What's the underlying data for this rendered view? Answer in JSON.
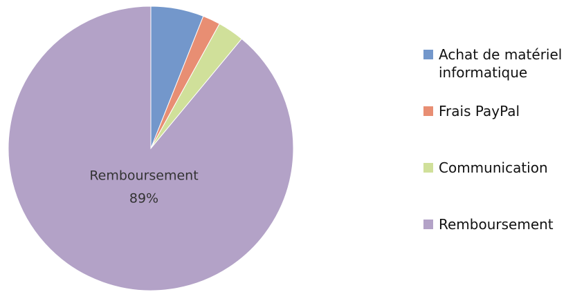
{
  "chart_data": {
    "type": "pie",
    "categories": [
      "Achat de matériel informatique",
      "Frais PayPal",
      "Communication",
      "Remboursement"
    ],
    "values": [
      6,
      2,
      3,
      89
    ],
    "value_labels": [
      null,
      null,
      null,
      "89%"
    ],
    "colors": [
      "#7397cb",
      "#e88e73",
      "#d0e09a",
      "#b3a2c7"
    ],
    "legend": "right"
  }
}
